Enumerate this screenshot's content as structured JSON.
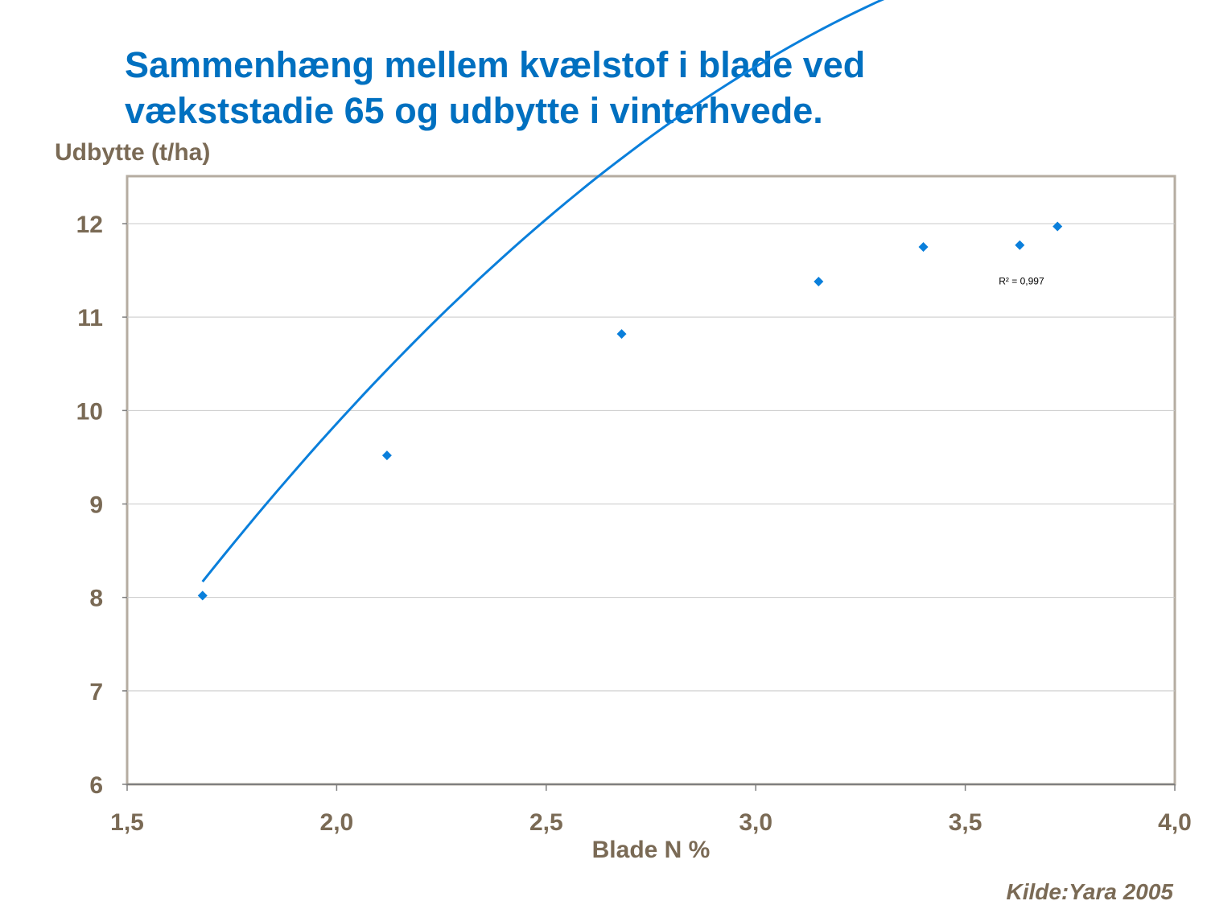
{
  "page": {
    "title_line1": "Sammenhæng mellem kvælstof i blade ved",
    "title_line2": "vækststadie 65 og udbytte i vinterhvede.",
    "source": "Kilde:Yara  2005"
  },
  "colors": {
    "title": "#0070c0",
    "labels": "#7a6a55",
    "series": "#0a7fdb",
    "frame": "#b5aca1",
    "grid": "#c8c8c8"
  },
  "chart_data": {
    "type": "scatter",
    "title": "Sammenhæng mellem kvælstof i blade ved vækststadie 65 og udbytte i vinterhvede.",
    "xlabel": "Blade N %",
    "ylabel": "Udbytte (t/ha)",
    "xlim": [
      1.5,
      4.0
    ],
    "ylim": [
      6,
      12.5
    ],
    "x_ticks": [
      1.5,
      2.0,
      2.5,
      3.0,
      3.5,
      4.0
    ],
    "x_tick_labels": [
      "1,5",
      "2,0",
      "2,5",
      "3,0",
      "3,5",
      "4,0"
    ],
    "y_ticks": [
      6,
      7,
      8,
      9,
      10,
      11,
      12
    ],
    "y_tick_labels": [
      "6",
      "7",
      "8",
      "9",
      "10",
      "11",
      "12"
    ],
    "grid": "horizontal",
    "legend": "none",
    "marker": "diamond",
    "series": [
      {
        "x": [
          1.68,
          2.12,
          2.68,
          3.15,
          3.4,
          3.63,
          3.72
        ],
        "y": [
          8.02,
          9.52,
          10.82,
          11.38,
          11.75,
          11.77,
          11.97
        ]
      }
    ],
    "trendline": {
      "type": "polynomial",
      "order": 2,
      "x_range": [
        1.68,
        3.72
      ],
      "coefficients": [
        -4.44,
        9.37,
        -1.11
      ],
      "r2_label": "R² = 0,997",
      "r2_position": [
        3.58,
        11.35
      ]
    }
  }
}
